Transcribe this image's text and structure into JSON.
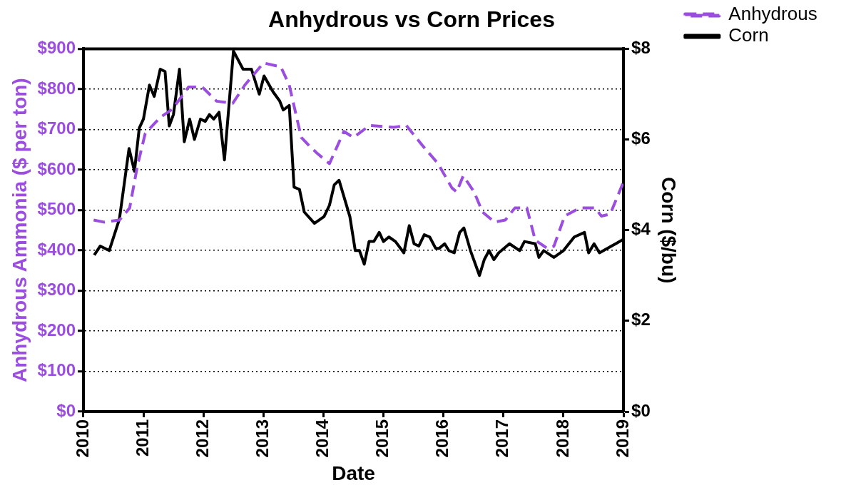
{
  "chart_data": {
    "type": "line",
    "title": "Anhydrous vs Corn Prices",
    "xlabel": "Date",
    "ylabel": "Anhydrous Ammonia ($ per ton)",
    "y2label": "Corn ($/bu)",
    "xlim": [
      2010,
      2019
    ],
    "xticks": [
      2010,
      2011,
      2012,
      2013,
      2014,
      2015,
      2016,
      2017,
      2018,
      2019
    ],
    "ylim": [
      0,
      900
    ],
    "yticks": [
      {
        "value": 0,
        "label": "$0"
      },
      {
        "value": 100,
        "label": "$100"
      },
      {
        "value": 200,
        "label": "$200"
      },
      {
        "value": 300,
        "label": "$300"
      },
      {
        "value": 400,
        "label": "$400"
      },
      {
        "value": 500,
        "label": "$500"
      },
      {
        "value": 600,
        "label": "$600"
      },
      {
        "value": 700,
        "label": "$700"
      },
      {
        "value": 800,
        "label": "$800"
      },
      {
        "value": 900,
        "label": "$900"
      }
    ],
    "y2lim": [
      0,
      8
    ],
    "y2ticks": [
      {
        "value": 0,
        "label": "$0"
      },
      {
        "value": 2,
        "label": "$2"
      },
      {
        "value": 4,
        "label": "$4"
      },
      {
        "value": 6,
        "label": "$6"
      },
      {
        "value": 8,
        "label": "$8"
      }
    ],
    "grid": "y",
    "legend": "top right",
    "marker": "none",
    "series": [
      {
        "name": "Anhydrous",
        "color": "#9b4de0",
        "line_style": "dashed",
        "x": [
          2010.17,
          2010.34,
          2010.6,
          2010.77,
          2010.9,
          2011.03,
          2011.28,
          2011.48,
          2011.75,
          2011.98,
          2012.22,
          2012.49,
          2012.69,
          2013.0,
          2013.29,
          2013.43,
          2013.63,
          2013.76,
          2013.9,
          2014.1,
          2014.34,
          2014.5,
          2014.77,
          2015.17,
          2015.38,
          2015.65,
          2015.91,
          2016.14,
          2016.22,
          2016.33,
          2016.51,
          2016.65,
          2016.85,
          2017.03,
          2017.19,
          2017.39,
          2017.53,
          2017.73,
          2017.84,
          2018.02,
          2018.27,
          2018.53,
          2018.63,
          2018.78,
          2019.0
        ],
        "values": [
          475,
          470,
          475,
          505,
          610,
          690,
          730,
          750,
          805,
          805,
          770,
          765,
          810,
          865,
          855,
          810,
          680,
          660,
          640,
          615,
          695,
          680,
          710,
          705,
          710,
          660,
          615,
          555,
          545,
          585,
          545,
          495,
          470,
          475,
          505,
          505,
          425,
          405,
          410,
          485,
          505,
          505,
          485,
          490,
          570
        ]
      },
      {
        "name": "Corn",
        "color": "#000000",
        "line_style": "solid",
        "axis": "y2",
        "x": [
          2010.18,
          2010.28,
          2010.43,
          2010.6,
          2010.76,
          2010.85,
          2010.93,
          2011.0,
          2011.1,
          2011.18,
          2011.28,
          2011.36,
          2011.43,
          2011.5,
          2011.6,
          2011.68,
          2011.77,
          2011.85,
          2011.95,
          2012.03,
          2012.1,
          2012.17,
          2012.26,
          2012.35,
          2012.5,
          2012.66,
          2012.8,
          2012.93,
          2013.01,
          2013.16,
          2013.27,
          2013.33,
          2013.43,
          2013.51,
          2013.6,
          2013.68,
          2013.85,
          2014.01,
          2014.1,
          2014.18,
          2014.26,
          2014.44,
          2014.53,
          2014.6,
          2014.68,
          2014.76,
          2014.84,
          2014.93,
          2015.0,
          2015.09,
          2015.2,
          2015.34,
          2015.43,
          2015.51,
          2015.59,
          2015.68,
          2015.77,
          2015.87,
          2015.93,
          2016.02,
          2016.09,
          2016.18,
          2016.27,
          2016.34,
          2016.45,
          2016.6,
          2016.68,
          2016.76,
          2016.84,
          2016.92,
          2017.1,
          2017.27,
          2017.35,
          2017.53,
          2017.59,
          2017.67,
          2017.84,
          2018.0,
          2018.18,
          2018.35,
          2018.42,
          2018.51,
          2018.6,
          2018.8,
          2018.87,
          2019.0
        ],
        "values": [
          3.45,
          3.65,
          3.55,
          4.25,
          5.8,
          5.3,
          6.25,
          6.45,
          7.2,
          6.95,
          7.55,
          7.5,
          6.3,
          6.55,
          7.55,
          5.95,
          6.45,
          6.0,
          6.45,
          6.4,
          6.55,
          6.45,
          6.6,
          5.55,
          7.95,
          7.55,
          7.55,
          7.0,
          7.4,
          7.05,
          6.85,
          6.65,
          6.75,
          4.95,
          4.9,
          4.4,
          4.15,
          4.3,
          4.55,
          5.0,
          5.1,
          4.3,
          3.55,
          3.55,
          3.25,
          3.75,
          3.75,
          3.95,
          3.75,
          3.85,
          3.75,
          3.5,
          4.1,
          3.7,
          3.65,
          3.9,
          3.85,
          3.6,
          3.6,
          3.7,
          3.55,
          3.5,
          3.95,
          4.05,
          3.55,
          3.0,
          3.35,
          3.55,
          3.35,
          3.5,
          3.7,
          3.55,
          3.75,
          3.7,
          3.4,
          3.55,
          3.4,
          3.55,
          3.85,
          3.95,
          3.5,
          3.7,
          3.5,
          3.65,
          3.7,
          3.8
        ]
      }
    ]
  }
}
